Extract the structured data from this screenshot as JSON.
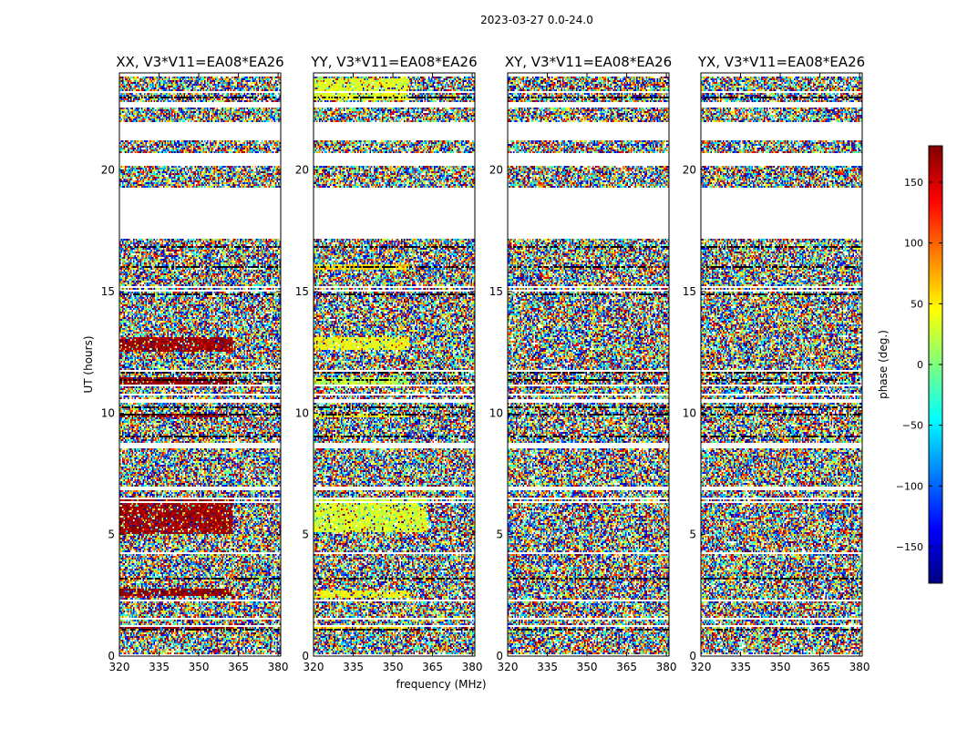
{
  "chart_data": {
    "type": "heatmap",
    "title": "2023-03-27 0.0-24.0",
    "xlabel": "frequency (MHz)",
    "ylabel": "UT (hours)",
    "xlim": [
      320,
      381
    ],
    "ylim": [
      0,
      24
    ],
    "xticks": [
      "320",
      "335",
      "350",
      "365",
      "380"
    ],
    "yticks": [
      "0",
      "5",
      "10",
      "15",
      "20"
    ],
    "colorbar": {
      "label": "phase (deg.)",
      "range": [
        -180,
        180
      ],
      "ticks": [
        "150",
        "100",
        "50",
        "0",
        "−50",
        "−100",
        "−150"
      ],
      "colormap": "jet"
    },
    "colors": {
      "jet": [
        "#00007f",
        "#0000ff",
        "#007fff",
        "#00ffff",
        "#7fff7f",
        "#ffff00",
        "#ff7f00",
        "#ff0000",
        "#7f0000"
      ]
    },
    "blank_ut_ranges": [
      [
        17.2,
        19.3
      ],
      [
        20.2,
        20.7
      ],
      [
        21.25,
        21.95
      ],
      [
        22.6,
        22.8
      ],
      [
        10.45,
        10.6
      ],
      [
        8.55,
        8.75
      ],
      [
        6.8,
        7.0
      ],
      [
        1.5,
        1.6
      ]
    ],
    "panels": [
      {
        "title": "XX, V3*V11=EA08*EA26",
        "structured": [
          {
            "ut": [
              5.0,
              6.5
            ],
            "fmax": 363,
            "value": 170
          },
          {
            "ut": [
              12.5,
              13.1
            ],
            "fmax": 363,
            "value": 170
          },
          {
            "ut": [
              11.1,
              11.5
            ],
            "fmax": 363,
            "value": 175
          },
          {
            "ut": [
              9.8,
              10.0
            ],
            "fmax": 363,
            "value": 170
          },
          {
            "ut": [
              2.5,
              2.8
            ],
            "fmax": 363,
            "value": 175
          },
          {
            "ut": [
              1.1,
              1.3
            ],
            "fmax": 363,
            "value": 170
          }
        ]
      },
      {
        "title": "YY, V3*V11=EA08*EA26",
        "structured": [
          {
            "ut": [
              5.1,
              6.5
            ],
            "fmax": 363,
            "value": 30
          },
          {
            "ut": [
              12.6,
              13.1
            ],
            "fmax": 356,
            "value": 40
          },
          {
            "ut": [
              11.1,
              11.5
            ],
            "fmax": 356,
            "value": 20
          },
          {
            "ut": [
              9.8,
              10.0
            ],
            "fmax": 356,
            "value": 45
          },
          {
            "ut": [
              22.9,
              23.8
            ],
            "fmax": 356,
            "value": 35
          },
          {
            "ut": [
              15.9,
              16.1
            ],
            "fmax": 356,
            "value": 60
          },
          {
            "ut": [
              2.4,
              2.7
            ],
            "fmax": 356,
            "value": 45
          },
          {
            "ut": [
              1.1,
              1.3
            ],
            "fmax": 356,
            "value": 55
          }
        ]
      },
      {
        "title": "XY, V3*V11=EA08*EA26",
        "structured": []
      },
      {
        "title": "YX, V3*V11=EA08*EA26",
        "structured": []
      }
    ]
  }
}
